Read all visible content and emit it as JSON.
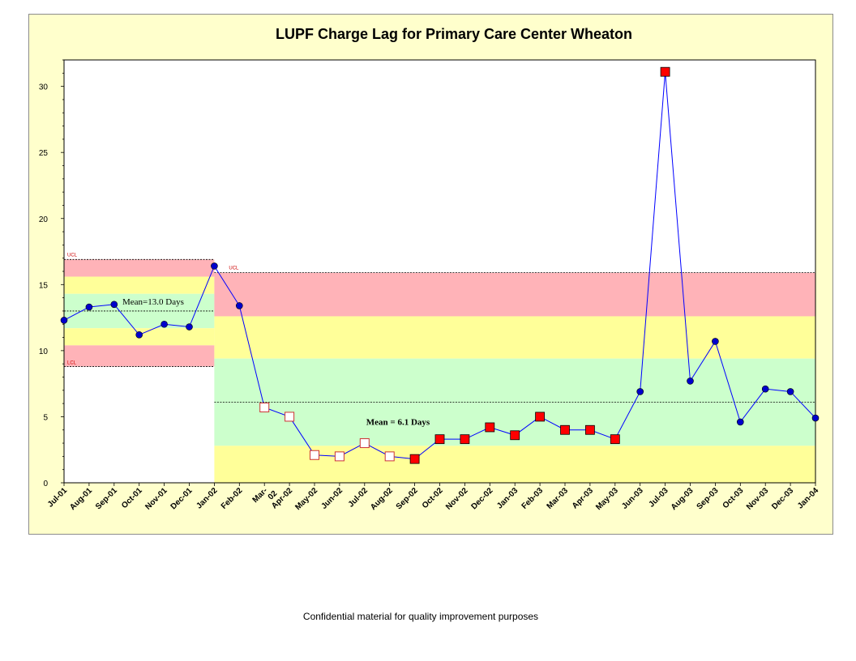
{
  "footer": {
    "note": "Confidential material for quality improvement purposes"
  },
  "colors": {
    "frame_bg": "#ffffcc",
    "plot_bg": "#ffffff",
    "zone_red": "#ffb3b8",
    "zone_yellow": "#ffff99",
    "zone_green": "#ccffcc",
    "line": "#0000ff",
    "marker_circle": "#0000cc",
    "marker_square_fill": "#ff0000",
    "marker_square_open": "#ffffff",
    "marker_square_open_edge": "#cc3333",
    "limit_label": "#cc0000"
  },
  "chart_data": {
    "type": "line",
    "title": "LUPF Charge Lag for Primary Care Center Wheaton",
    "xlabel": "",
    "ylabel": "",
    "ylim": [
      0,
      32
    ],
    "yticks": [
      0,
      5,
      10,
      15,
      20,
      25,
      30
    ],
    "grid": false,
    "legend": "none",
    "categories": [
      "Jul-01",
      "Aug-01",
      "Sep-01",
      "Oct-01",
      "Nov-01",
      "Dec-01",
      "Jan-02",
      "Feb-02",
      "Mar-\n02",
      "Apr-02",
      "May-02",
      "Jun-02",
      "Jul-02",
      "Aug-02",
      "Sep-02",
      "Oct-02",
      "Nov-02",
      "Dec-02",
      "Jan-03",
      "Feb-03",
      "Mar-03",
      "Apr-03",
      "May-03",
      "Jun-03",
      "Jul-03",
      "Aug-03",
      "Sep-03",
      "Oct-03",
      "Nov-03",
      "Dec-03",
      "Jan-04"
    ],
    "series": [
      {
        "values": [
          12.3,
          13.3,
          13.5,
          11.2,
          12.0,
          11.8,
          16.4,
          13.4,
          5.7,
          5.0,
          2.1,
          2.0,
          3.0,
          2.0,
          1.8,
          3.3,
          3.3,
          4.2,
          3.6,
          5.0,
          4.0,
          4.0,
          3.3,
          6.9,
          31.1,
          7.7,
          10.7,
          4.6,
          7.1,
          6.9,
          4.9
        ],
        "markers": [
          "circle",
          "circle",
          "circle",
          "circle",
          "circle",
          "circle",
          "circle",
          "circle",
          "square-open",
          "square-open",
          "square-open",
          "square-open",
          "square-open",
          "square-open",
          "square-filled",
          "square-filled",
          "square-filled",
          "square-filled",
          "square-filled",
          "square-filled",
          "square-filled",
          "square-filled",
          "square-filled",
          "circle",
          "square-filled",
          "circle",
          "circle",
          "circle",
          "circle",
          "circle",
          "circle"
        ]
      }
    ],
    "control_periods": [
      {
        "from": "Jul-01",
        "to": "Jan-02",
        "mean": 13.0,
        "mean_label": "Mean=13.0 Days",
        "ucl": 16.9,
        "ucl_label": "UCL",
        "lcl": 8.8,
        "lcl_label": "LCL",
        "zones": [
          {
            "from": 15.6,
            "to": 16.9,
            "color": "red"
          },
          {
            "from": 14.3,
            "to": 15.6,
            "color": "yellow"
          },
          {
            "from": 11.7,
            "to": 14.3,
            "color": "green"
          },
          {
            "from": 10.4,
            "to": 11.7,
            "color": "yellow"
          },
          {
            "from": 8.8,
            "to": 10.4,
            "color": "red"
          }
        ]
      },
      {
        "from": "Jan-02",
        "to": "Jan-04",
        "mean": 6.1,
        "mean_label": "Mean = 6.1 Days",
        "ucl": 15.9,
        "ucl_label": "UCL",
        "zones": [
          {
            "from": 12.6,
            "to": 15.9,
            "color": "red"
          },
          {
            "from": 9.4,
            "to": 12.6,
            "color": "yellow"
          },
          {
            "from": 2.8,
            "to": 9.4,
            "color": "green"
          },
          {
            "from": 0,
            "to": 2.8,
            "color": "yellow"
          }
        ]
      }
    ]
  }
}
